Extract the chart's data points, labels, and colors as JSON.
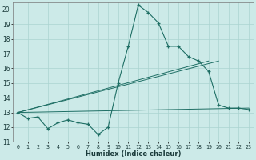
{
  "xlabel": "Humidex (Indice chaleur)",
  "xlim": [
    -0.5,
    23.5
  ],
  "ylim": [
    11,
    20.5
  ],
  "yticks": [
    11,
    12,
    13,
    14,
    15,
    16,
    17,
    18,
    19,
    20
  ],
  "xticks": [
    0,
    1,
    2,
    3,
    4,
    5,
    6,
    7,
    8,
    9,
    10,
    11,
    12,
    13,
    14,
    15,
    16,
    17,
    18,
    19,
    20,
    21,
    22,
    23
  ],
  "background_color": "#cceae8",
  "grid_color": "#aad4d0",
  "line_color": "#1e6e64",
  "curve": {
    "x": [
      0,
      1,
      2,
      3,
      4,
      5,
      6,
      7,
      8,
      9,
      10,
      11,
      12,
      13,
      14,
      15,
      16,
      17,
      18,
      19,
      20,
      21,
      22,
      23
    ],
    "y": [
      13.0,
      12.6,
      12.7,
      11.9,
      12.3,
      12.5,
      12.3,
      12.2,
      11.5,
      12.0,
      15.0,
      17.5,
      20.3,
      19.8,
      19.1,
      17.5,
      17.5,
      16.8,
      16.5,
      15.8,
      13.5,
      13.3,
      13.3,
      13.2
    ]
  },
  "straight_lines": [
    {
      "x": [
        0,
        19
      ],
      "y": [
        13.0,
        16.5
      ]
    },
    {
      "x": [
        0,
        20
      ],
      "y": [
        13.0,
        16.5
      ]
    },
    {
      "x": [
        0,
        23
      ],
      "y": [
        13.0,
        13.3
      ]
    }
  ]
}
